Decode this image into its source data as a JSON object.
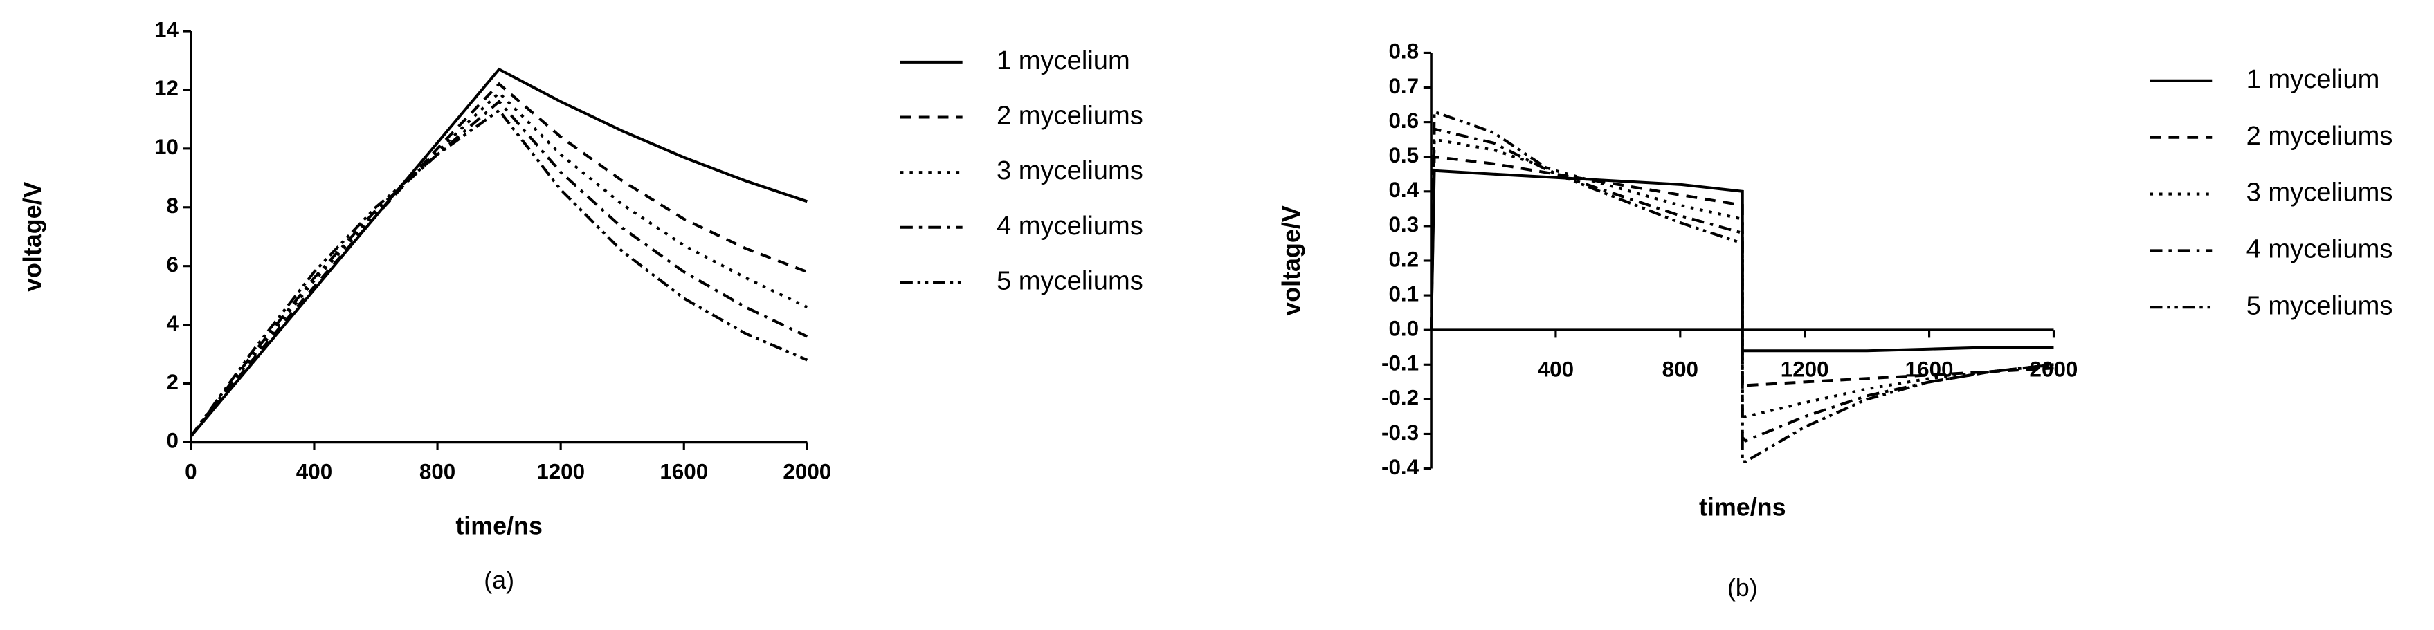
{
  "chart_data": [
    {
      "type": "line",
      "caption": "(a)",
      "xlabel": "time/ns",
      "ylabel": "voltage/V",
      "x": [
        0,
        200,
        400,
        600,
        800,
        1000,
        1200,
        1400,
        1600,
        1800,
        2000
      ],
      "xlim": [
        0,
        2000
      ],
      "xticks": [
        0,
        400,
        800,
        1200,
        1600,
        2000
      ],
      "ylim": [
        0,
        14
      ],
      "yticks": [
        0,
        2,
        4,
        6,
        8,
        10,
        12,
        14
      ],
      "series": [
        {
          "name": "1 mycelium",
          "color": "#000000",
          "dash": "solid",
          "values": [
            0.2,
            2.7,
            5.2,
            7.7,
            10.2,
            12.7,
            11.6,
            10.6,
            9.7,
            8.9,
            8.2
          ]
        },
        {
          "name": "2 myceliums",
          "color": "#000000",
          "dash": "dashed",
          "values": [
            0.2,
            2.8,
            5.3,
            7.7,
            10.0,
            12.2,
            10.4,
            8.9,
            7.6,
            6.6,
            5.8
          ]
        },
        {
          "name": "3 myceliums",
          "color": "#000000",
          "dash": "dotted",
          "values": [
            0.2,
            2.9,
            5.5,
            7.8,
            9.9,
            11.9,
            9.8,
            8.1,
            6.7,
            5.6,
            4.6
          ]
        },
        {
          "name": "4 myceliums",
          "color": "#000000",
          "dash": "dashdot",
          "values": [
            0.2,
            3.0,
            5.6,
            7.9,
            9.8,
            11.6,
            9.2,
            7.3,
            5.8,
            4.6,
            3.6
          ]
        },
        {
          "name": "5 myceliums",
          "color": "#000000",
          "dash": "dashdotdot",
          "values": [
            0.2,
            3.1,
            5.8,
            8.0,
            9.8,
            11.3,
            8.6,
            6.5,
            4.9,
            3.7,
            2.8
          ]
        }
      ]
    },
    {
      "type": "line",
      "caption": "(b)",
      "xlabel": "time/ns",
      "ylabel": "voltage/V",
      "x": [
        0,
        10,
        200,
        400,
        600,
        800,
        1000,
        1000,
        1010,
        1200,
        1400,
        1600,
        1800,
        2000
      ],
      "xlim": [
        0,
        2000
      ],
      "xticks": [
        400,
        800,
        1200,
        1600,
        2000
      ],
      "ylim": [
        -0.4,
        0.8
      ],
      "yticks": [
        -0.4,
        -0.3,
        -0.2,
        -0.1,
        {
          "value": 0,
          "label": "0.0"
        },
        0.1,
        0.2,
        0.3,
        0.4,
        0.5,
        0.6,
        0.7,
        0.8
      ],
      "series": [
        {
          "name": "1 mycelium",
          "color": "#000000",
          "dash": "solid",
          "values": [
            0,
            0.46,
            0.45,
            0.44,
            0.43,
            0.42,
            0.4,
            -0.06,
            -0.06,
            -0.06,
            -0.06,
            -0.055,
            -0.05,
            -0.05
          ]
        },
        {
          "name": "2 myceliums",
          "color": "#000000",
          "dash": "dashed",
          "values": [
            0,
            0.5,
            0.48,
            0.45,
            0.42,
            0.39,
            0.36,
            -0.16,
            -0.16,
            -0.15,
            -0.14,
            -0.13,
            -0.12,
            -0.11
          ]
        },
        {
          "name": "3 myceliums",
          "color": "#000000",
          "dash": "dotted",
          "values": [
            0,
            0.55,
            0.52,
            0.46,
            0.41,
            0.36,
            0.32,
            -0.25,
            -0.25,
            -0.21,
            -0.17,
            -0.14,
            -0.12,
            -0.1
          ]
        },
        {
          "name": "4 myceliums",
          "color": "#000000",
          "dash": "dashdot",
          "values": [
            0,
            0.58,
            0.54,
            0.45,
            0.39,
            0.33,
            0.28,
            -0.31,
            -0.32,
            -0.25,
            -0.19,
            -0.15,
            -0.12,
            -0.1
          ]
        },
        {
          "name": "5 myceliums",
          "color": "#000000",
          "dash": "dashdotdot",
          "values": [
            0,
            0.63,
            0.57,
            0.45,
            0.38,
            0.31,
            0.25,
            -0.38,
            -0.38,
            -0.28,
            -0.2,
            -0.15,
            -0.12,
            -0.1
          ]
        }
      ]
    }
  ]
}
